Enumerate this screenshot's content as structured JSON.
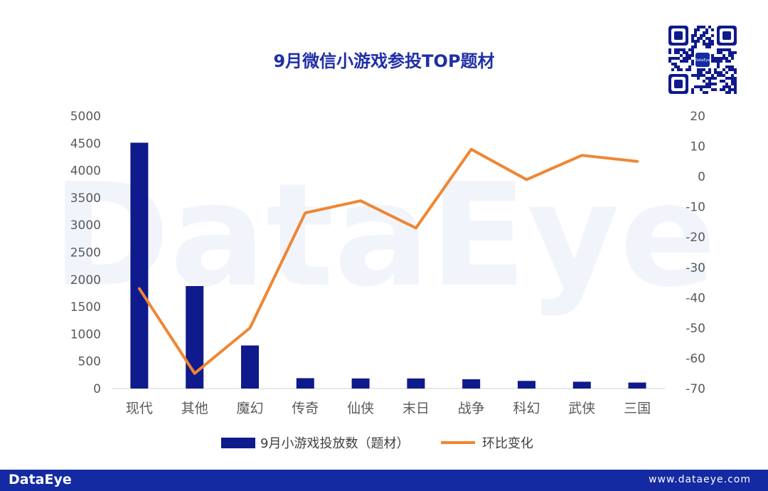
{
  "watermark": "DataEye",
  "qr_label": "DataEye",
  "chart_data": {
    "type": "bar+line",
    "title": "9月微信小游戏参投TOP题材",
    "categories": [
      "现代",
      "其他",
      "魔幻",
      "传奇",
      "仙侠",
      "末日",
      "战争",
      "科幻",
      "武侠",
      "三国"
    ],
    "series": [
      {
        "name": "9月小游戏投放数（题材）",
        "type": "bar",
        "axis": "left",
        "color": "#0f1a8c",
        "values": [
          4510,
          1880,
          790,
          190,
          185,
          185,
          170,
          140,
          125,
          110
        ]
      },
      {
        "name": "环比变化",
        "type": "line",
        "axis": "right",
        "color": "#ef8633",
        "values": [
          -37,
          -65,
          -50,
          -12,
          -8,
          -17,
          9,
          -1,
          7,
          5
        ]
      }
    ],
    "y_left": {
      "min": 0,
      "max": 5000,
      "ticks": [
        0,
        500,
        1000,
        1500,
        2000,
        2500,
        3000,
        3500,
        4000,
        4500,
        5000
      ]
    },
    "y_right": {
      "min": -70,
      "max": 20,
      "ticks": [
        20,
        10,
        0,
        -10,
        -20,
        -30,
        -40,
        -50,
        -60,
        -70
      ]
    },
    "legend_position": "bottom",
    "grid": false
  },
  "footer": {
    "logo": "DataEye",
    "url": "www.dataeye.com"
  }
}
